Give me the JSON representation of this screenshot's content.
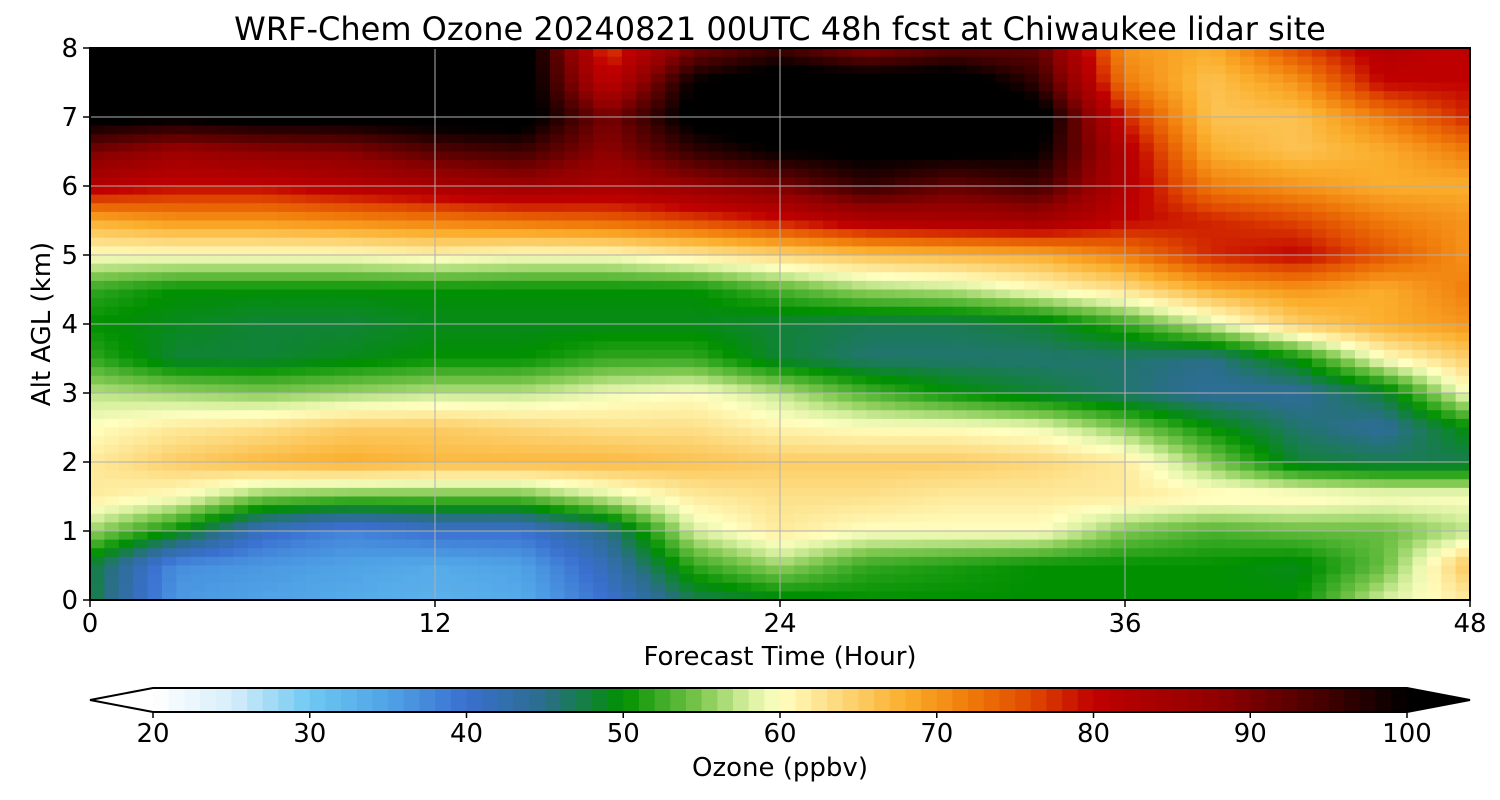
{
  "chart_data": {
    "type": "heatmap",
    "title": "WRF-Chem Ozone  20240821 00UTC 48h fcst at Chiwaukee lidar site",
    "xlabel": "Forecast Time (Hour)",
    "ylabel": "Alt AGL (km)",
    "xlim": [
      0,
      48
    ],
    "ylim": [
      0,
      8
    ],
    "xticks": [
      "0",
      "12",
      "24",
      "36",
      "48"
    ],
    "yticks": [
      "0",
      "1",
      "2",
      "3",
      "4",
      "5",
      "6",
      "7",
      "8"
    ],
    "grid": true,
    "colorbar": {
      "label": "Ozone  (ppbv)",
      "range": [
        20,
        100
      ],
      "ticks": [
        "20",
        "30",
        "40",
        "50",
        "60",
        "70",
        "80",
        "90",
        "100"
      ],
      "extend": "both",
      "under_color": "#ffffff",
      "over_color": "#000000",
      "colormap": [
        [
          20,
          "#ffffff"
        ],
        [
          25,
          "#d6eefa"
        ],
        [
          30,
          "#6fc8f2"
        ],
        [
          35,
          "#4fa3e6"
        ],
        [
          40,
          "#3a6fd0"
        ],
        [
          45,
          "#2a6e8a"
        ],
        [
          50,
          "#009000"
        ],
        [
          55,
          "#7fc850"
        ],
        [
          58,
          "#d8f0a0"
        ],
        [
          60,
          "#ffffc0"
        ],
        [
          63,
          "#fde08a"
        ],
        [
          68,
          "#fbae2c"
        ],
        [
          72,
          "#f07c0a"
        ],
        [
          76,
          "#e04800"
        ],
        [
          80,
          "#c00000"
        ],
        [
          88,
          "#900000"
        ],
        [
          95,
          "#400000"
        ],
        [
          100,
          "#000000"
        ]
      ]
    },
    "x": [
      0,
      3,
      6,
      9,
      12,
      15,
      18,
      21,
      24,
      27,
      30,
      33,
      36,
      39,
      42,
      45,
      48
    ],
    "y": [
      0,
      0.5,
      1,
      1.5,
      2,
      2.5,
      3,
      3.5,
      4,
      4.5,
      5,
      5.5,
      6,
      6.5,
      7,
      7.5,
      8
    ],
    "z": [
      [
        48,
        36,
        35,
        34,
        33,
        34,
        40,
        47,
        49,
        50,
        50,
        50,
        50,
        50,
        50,
        58,
        62
      ],
      [
        48,
        37,
        36,
        35,
        34,
        35,
        42,
        52,
        56,
        52,
        51,
        50,
        50,
        50,
        49,
        54,
        66
      ],
      [
        56,
        50,
        41,
        38,
        40,
        40,
        45,
        58,
        62,
        60,
        60,
        60,
        55,
        53,
        54,
        54,
        57
      ],
      [
        62,
        60,
        55,
        54,
        54,
        54,
        58,
        62,
        63,
        63,
        62,
        62,
        62,
        61,
        61,
        60,
        60
      ],
      [
        62,
        65,
        67,
        68,
        67,
        67,
        67,
        66,
        65,
        65,
        65,
        64,
        62,
        55,
        48,
        47,
        47
      ],
      [
        60,
        62,
        63,
        65,
        65,
        64,
        63,
        63,
        61,
        60,
        60,
        59,
        55,
        50,
        46,
        44,
        50
      ],
      [
        57,
        56,
        55,
        56,
        57,
        57,
        59,
        60,
        57,
        53,
        50,
        48,
        46,
        44,
        44,
        48,
        60
      ],
      [
        52,
        48,
        48,
        49,
        50,
        50,
        52,
        52,
        48,
        46,
        46,
        46,
        46,
        45,
        50,
        60,
        65
      ],
      [
        50,
        49,
        48,
        48,
        49,
        49,
        49,
        49,
        48,
        47,
        47,
        48,
        52,
        58,
        65,
        68,
        70
      ],
      [
        52,
        50,
        50,
        50,
        50,
        50,
        50,
        50,
        53,
        56,
        57,
        60,
        63,
        68,
        70,
        68,
        72
      ],
      [
        60,
        60,
        60,
        60,
        61,
        60,
        60,
        62,
        64,
        66,
        67,
        68,
        72,
        78,
        80,
        75,
        70
      ],
      [
        68,
        70,
        70,
        71,
        72,
        73,
        74,
        76,
        79,
        83,
        84,
        85,
        80,
        78,
        76,
        72,
        70
      ],
      [
        82,
        80,
        80,
        82,
        84,
        86,
        84,
        87,
        90,
        96,
        92,
        95,
        82,
        72,
        70,
        68,
        68
      ],
      [
        90,
        86,
        88,
        89,
        93,
        95,
        88,
        96,
        100,
        101,
        101,
        100,
        82,
        68,
        66,
        68,
        72
      ],
      [
        102,
        101,
        102,
        102,
        103,
        103,
        90,
        102,
        104,
        104,
        104,
        103,
        78,
        66,
        66,
        72,
        78
      ],
      [
        104,
        104,
        104,
        104,
        104,
        104,
        80,
        100,
        104,
        104,
        104,
        96,
        72,
        66,
        70,
        80,
        80
      ],
      [
        104,
        104,
        104,
        104,
        104,
        104,
        76,
        90,
        95,
        88,
        92,
        92,
        70,
        68,
        76,
        82,
        80
      ]
    ]
  }
}
